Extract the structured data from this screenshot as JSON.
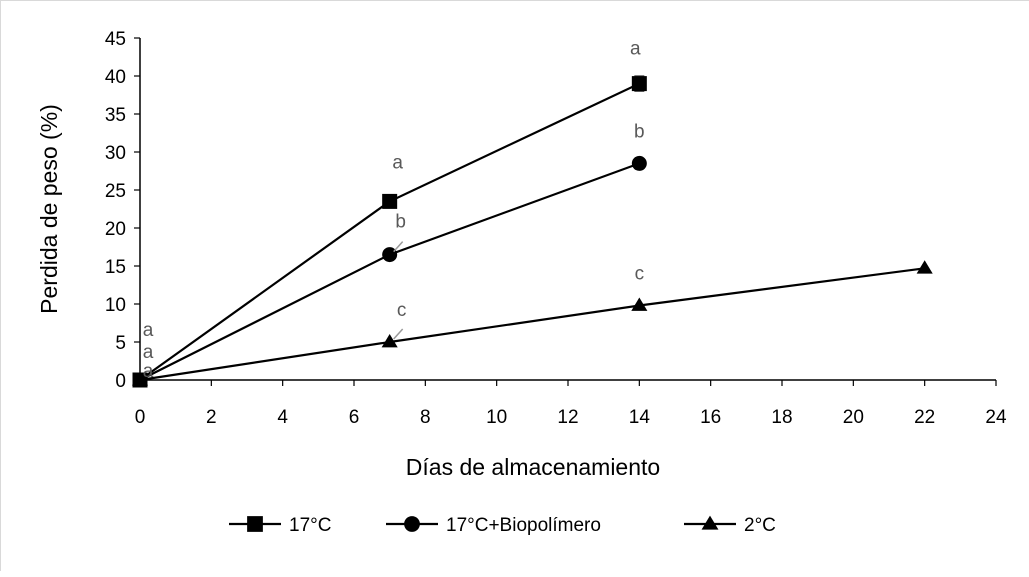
{
  "chart_data": {
    "type": "line",
    "xlabel": "Días de almacenamiento",
    "ylabel": "Perdida de peso (%)",
    "xlim": [
      0,
      24
    ],
    "ylim": [
      0,
      45
    ],
    "xticks": [
      0,
      2,
      4,
      6,
      8,
      10,
      12,
      14,
      16,
      18,
      20,
      22,
      24
    ],
    "yticks": [
      0,
      5,
      10,
      15,
      20,
      25,
      30,
      35,
      40,
      45
    ],
    "grid": false,
    "legend": "bottom",
    "series": [
      {
        "name": "17°C",
        "marker": "square",
        "color": "#000000",
        "x": [
          0,
          7,
          14
        ],
        "y": [
          0,
          23.5,
          39
        ],
        "error": [
          0,
          0,
          1
        ],
        "letters": [
          "a",
          "a",
          "a"
        ]
      },
      {
        "name": "17°C+Biopolímero",
        "marker": "circle",
        "color": "#000000",
        "x": [
          0,
          7,
          14
        ],
        "y": [
          0,
          16.5,
          28.5
        ],
        "error": [
          0,
          0,
          0
        ],
        "letters": [
          "a",
          "b",
          "b"
        ]
      },
      {
        "name": "2°C",
        "marker": "triangle",
        "color": "#000000",
        "x": [
          0,
          7,
          14,
          22
        ],
        "y": [
          0,
          5,
          9.8,
          14.7
        ],
        "error": [
          0,
          0,
          0,
          0
        ],
        "letters": [
          "a",
          "c",
          "c",
          ""
        ]
      }
    ]
  }
}
